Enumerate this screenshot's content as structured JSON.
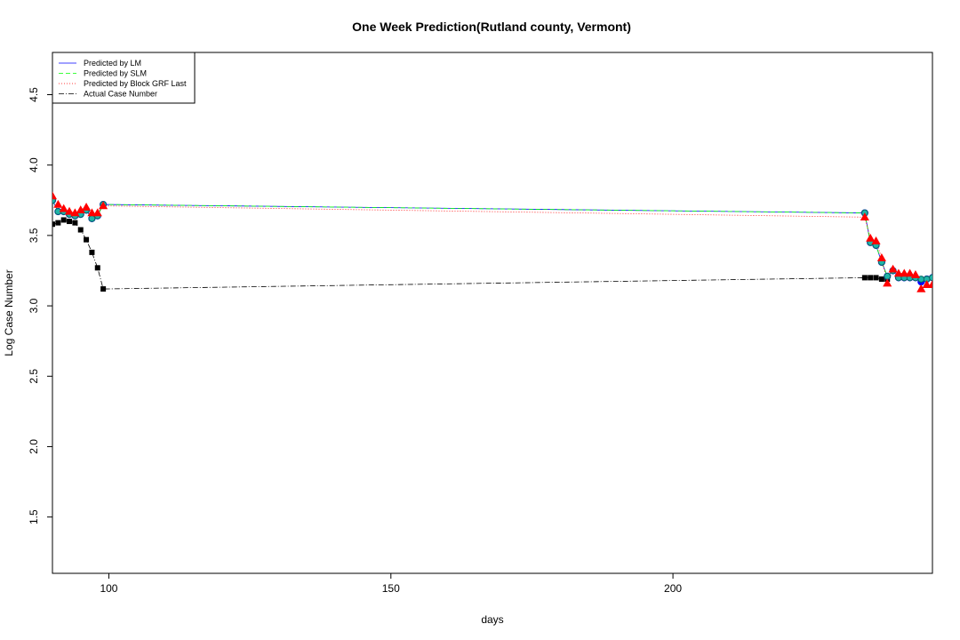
{
  "chart_data": {
    "type": "line",
    "title": "One Week Prediction(Rutland county, Vermont)",
    "xlabel": "days",
    "ylabel": "Log Case Number",
    "xlim": [
      90,
      246
    ],
    "ylim": [
      1.1,
      4.8
    ],
    "xticks": [
      100,
      150,
      200
    ],
    "yticks": [
      1.5,
      2.0,
      2.5,
      3.0,
      3.5,
      4.0,
      4.5
    ],
    "grid": false,
    "legend_position": "top-left",
    "series": [
      {
        "name": "Predicted by LM",
        "color": "#0000ff",
        "line": "solid",
        "marker": "circle-blue",
        "x": [
          90,
          91,
          92,
          93,
          94,
          95,
          96,
          97,
          98,
          99,
          234,
          235,
          236,
          237,
          238,
          239,
          240,
          241,
          242,
          243,
          244,
          245,
          246
        ],
        "y": [
          3.75,
          3.67,
          3.67,
          3.65,
          3.64,
          3.65,
          3.68,
          3.62,
          3.64,
          3.72,
          3.66,
          3.45,
          3.43,
          3.31,
          3.21,
          3.25,
          3.2,
          3.2,
          3.2,
          3.2,
          3.17,
          3.19,
          3.2
        ]
      },
      {
        "name": "Predicted by SLM",
        "color": "#00ff00",
        "line": "dashed",
        "marker": "circle-cyan",
        "x": [
          90,
          91,
          92,
          93,
          94,
          95,
          96,
          97,
          98,
          99,
          234,
          235,
          236,
          237,
          238,
          239,
          240,
          241,
          242,
          243,
          244,
          245,
          246
        ],
        "y": [
          3.75,
          3.67,
          3.67,
          3.65,
          3.64,
          3.65,
          3.68,
          3.62,
          3.64,
          3.72,
          3.66,
          3.45,
          3.43,
          3.31,
          3.21,
          3.25,
          3.2,
          3.2,
          3.2,
          3.2,
          3.19,
          3.19,
          3.2
        ]
      },
      {
        "name": "Predicted by Block GRF Last",
        "color": "#ff0000",
        "line": "dotted",
        "marker": "triangle-red",
        "x": [
          90,
          91,
          92,
          93,
          94,
          95,
          96,
          97,
          98,
          99,
          234,
          235,
          236,
          237,
          238,
          239,
          240,
          241,
          242,
          243,
          244,
          245,
          246
        ],
        "y": [
          3.78,
          3.72,
          3.69,
          3.67,
          3.66,
          3.68,
          3.7,
          3.66,
          3.66,
          3.71,
          3.63,
          3.48,
          3.46,
          3.34,
          3.16,
          3.26,
          3.23,
          3.23,
          3.23,
          3.22,
          3.12,
          3.15,
          3.15
        ]
      },
      {
        "name": "Actual Case Number",
        "color": "#000000",
        "line": "dashdot",
        "marker": "square-black",
        "x": [
          90,
          91,
          92,
          93,
          94,
          95,
          96,
          97,
          98,
          99,
          234,
          235,
          236,
          237,
          238
        ],
        "y": [
          3.58,
          3.59,
          3.61,
          3.6,
          3.59,
          3.54,
          3.47,
          3.38,
          3.27,
          3.12,
          3.2,
          3.2,
          3.2,
          3.19,
          3.19
        ]
      }
    ]
  }
}
